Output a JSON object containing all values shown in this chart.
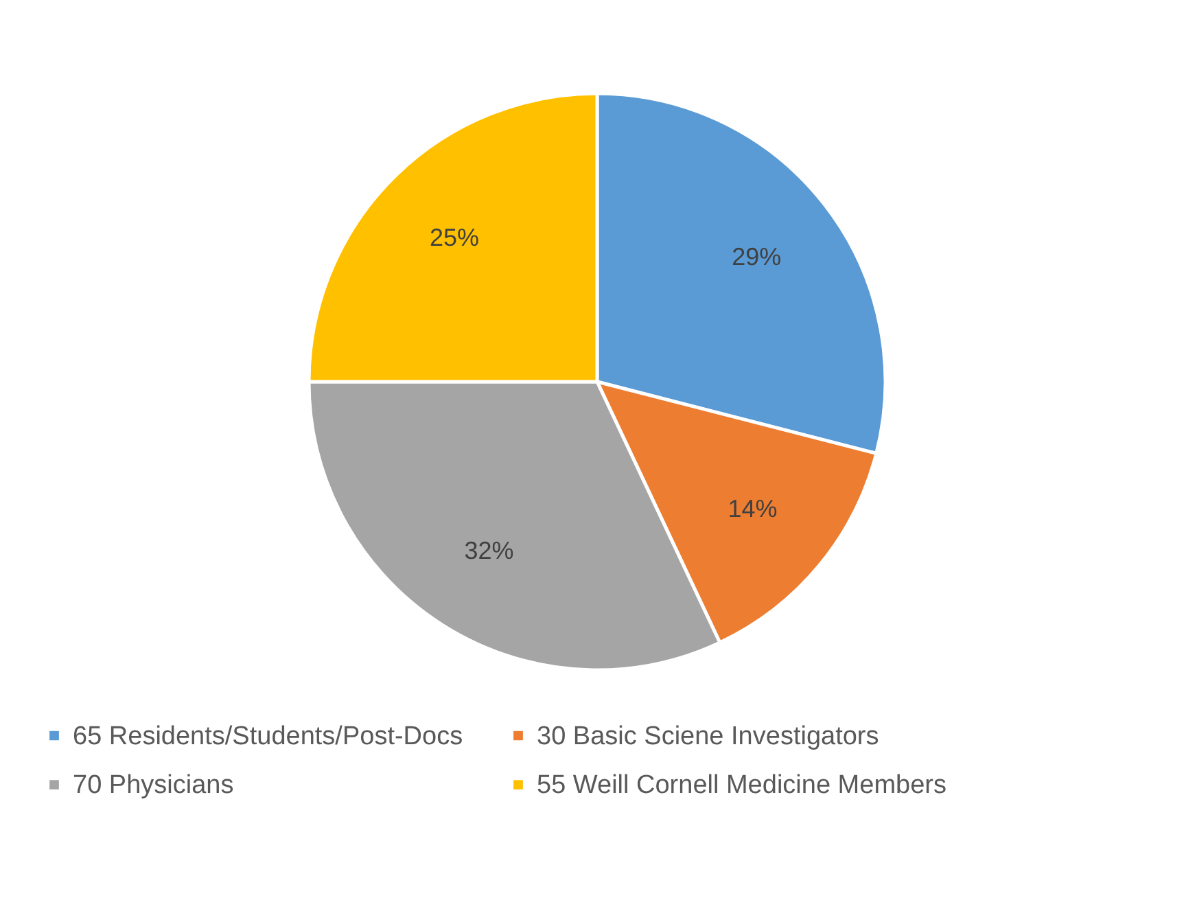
{
  "chart_data": {
    "type": "pie",
    "categories": [
      "65 Residents/Students/Post-Docs",
      "30 Basic Sciene Investigators",
      "70 Physicians",
      "55 Weill Cornell Medicine Members"
    ],
    "values": [
      29,
      14,
      32,
      25
    ],
    "colors": [
      "#5b9bd5",
      "#ed7d31",
      "#a5a5a5",
      "#ffc000"
    ],
    "value_labels": [
      "29%",
      "14%",
      "32%",
      "25%"
    ],
    "legend": "bottom"
  }
}
